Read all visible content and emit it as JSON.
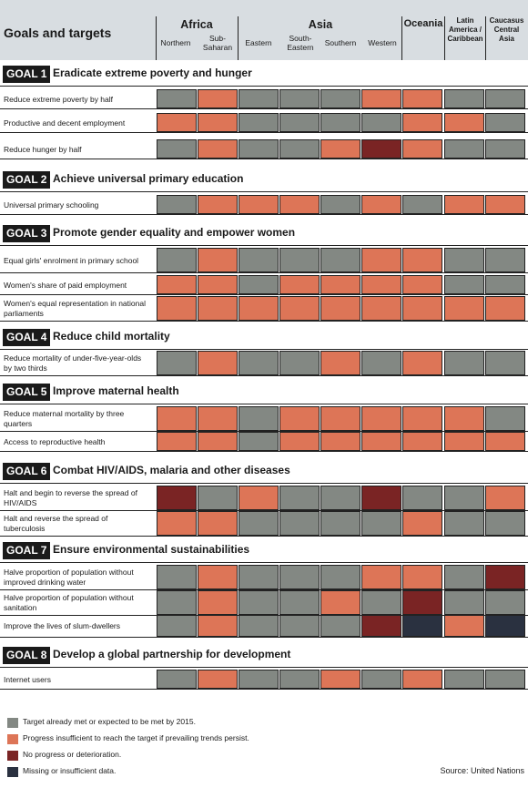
{
  "header": {
    "title": "Goals and targets",
    "groups": [
      "Africa",
      "Asia",
      "Oceania",
      "Latin America / Caribbean",
      "Caucasus Central Asia"
    ],
    "regions": [
      "Northern",
      "Sub-Saharan",
      "Eastern",
      "South-Eastern",
      "Southern",
      "Western",
      "Oceania",
      "Latin America / Caribbean",
      "Caucasus Central Asia"
    ]
  },
  "legend": [
    {
      "status": "met",
      "label": "Target already met or expected to be met by 2015.",
      "color": "#838883"
    },
    {
      "status": "insufficient",
      "label": "Progress insufficient to reach the target if prevailing trends persist.",
      "color": "#dd7557"
    },
    {
      "status": "none",
      "label": "No progress or deterioration.",
      "color": "#7a2424"
    },
    {
      "status": "missing",
      "label": "Missing or insufficient data.",
      "color": "#2a3140"
    }
  ],
  "source": "Source: United Nations",
  "chart_data": {
    "type": "heatmap",
    "title": "Goals and targets",
    "columns": [
      "Northern",
      "Sub-Saharan",
      "Eastern",
      "South-Eastern",
      "Southern",
      "Western",
      "Oceania",
      "Latin America / Caribbean",
      "Caucasus Central Asia"
    ],
    "goals": [
      {
        "badge": "GOAL 1",
        "title": "Eradicate extreme poverty and hunger",
        "targets": [
          {
            "label": "Reduce extreme poverty by half",
            "status": [
              "met",
              "insufficient",
              "met",
              "met",
              "met",
              "insufficient",
              "insufficient",
              "met",
              "met"
            ]
          },
          {
            "label": "Productive and decent employment",
            "status": [
              "insufficient",
              "insufficient",
              "met",
              "met",
              "met",
              "met",
              "insufficient",
              "insufficient",
              "met"
            ]
          },
          {
            "label": "Reduce hunger by half",
            "status": [
              "met",
              "insufficient",
              "met",
              "met",
              "insufficient",
              "none",
              "insufficient",
              "met",
              "met"
            ]
          }
        ]
      },
      {
        "badge": "GOAL 2",
        "title": "Achieve universal primary education",
        "targets": [
          {
            "label": "Universal primary schooling",
            "status": [
              "met",
              "insufficient",
              "insufficient",
              "insufficient",
              "met",
              "insufficient",
              "met",
              "insufficient",
              "insufficient"
            ]
          }
        ]
      },
      {
        "badge": "GOAL 3",
        "title": "Promote gender equality and empower women",
        "targets": [
          {
            "label": "Equal girls' enrolment in primary school",
            "status": [
              "met",
              "insufficient",
              "met",
              "met",
              "met",
              "insufficient",
              "insufficient",
              "met",
              "met"
            ]
          },
          {
            "label": "Women's share of paid employment",
            "status": [
              "insufficient",
              "insufficient",
              "met",
              "insufficient",
              "insufficient",
              "insufficient",
              "insufficient",
              "met",
              "met"
            ]
          },
          {
            "label": "Women's equal representation in national parliaments",
            "status": [
              "insufficient",
              "insufficient",
              "insufficient",
              "insufficient",
              "insufficient",
              "insufficient",
              "insufficient",
              "insufficient",
              "insufficient"
            ]
          }
        ]
      },
      {
        "badge": "GOAL 4",
        "title": "Reduce child mortality",
        "targets": [
          {
            "label": "Reduce mortality of under-five-year-olds by two thirds",
            "status": [
              "met",
              "insufficient",
              "met",
              "met",
              "insufficient",
              "met",
              "insufficient",
              "met",
              "met"
            ]
          }
        ]
      },
      {
        "badge": "GOAL 5",
        "title": "Improve maternal health",
        "targets": [
          {
            "label": "Reduce maternal mortality by three quarters",
            "status": [
              "insufficient",
              "insufficient",
              "met",
              "insufficient",
              "insufficient",
              "insufficient",
              "insufficient",
              "insufficient",
              "met"
            ]
          },
          {
            "label": "Access to reproductive health",
            "status": [
              "insufficient",
              "insufficient",
              "met",
              "insufficient",
              "insufficient",
              "insufficient",
              "insufficient",
              "insufficient",
              "insufficient"
            ]
          }
        ]
      },
      {
        "badge": "GOAL 6",
        "title": "Combat HIV/AIDS, malaria and other diseases",
        "targets": [
          {
            "label": "Halt and begin to reverse the spread of HIV/AIDS",
            "status": [
              "none",
              "met",
              "insufficient",
              "met",
              "met",
              "none",
              "met",
              "met",
              "insufficient"
            ]
          },
          {
            "label": "Halt and reverse the spread of tuberculosis",
            "status": [
              "insufficient",
              "insufficient",
              "met",
              "met",
              "met",
              "met",
              "insufficient",
              "met",
              "met"
            ]
          }
        ]
      },
      {
        "badge": "GOAL 7",
        "title": "Ensure environmental sustainabilities",
        "targets": [
          {
            "label": "Halve proportion of population without improved drinking water",
            "status": [
              "met",
              "insufficient",
              "met",
              "met",
              "met",
              "insufficient",
              "insufficient",
              "met",
              "none"
            ]
          },
          {
            "label": "Halve proportion of population without sanitation",
            "status": [
              "met",
              "insufficient",
              "met",
              "met",
              "insufficient",
              "met",
              "none",
              "met",
              "met"
            ]
          },
          {
            "label": "Improve the lives of slum-dwellers",
            "status": [
              "met",
              "insufficient",
              "met",
              "met",
              "met",
              "none",
              "missing",
              "insufficient",
              "missing"
            ]
          }
        ]
      },
      {
        "badge": "GOAL 8",
        "title": "Develop a global partnership for development",
        "targets": [
          {
            "label": "Internet users",
            "status": [
              "met",
              "insufficient",
              "met",
              "met",
              "insufficient",
              "met",
              "insufficient",
              "met",
              "met"
            ]
          }
        ]
      }
    ]
  }
}
